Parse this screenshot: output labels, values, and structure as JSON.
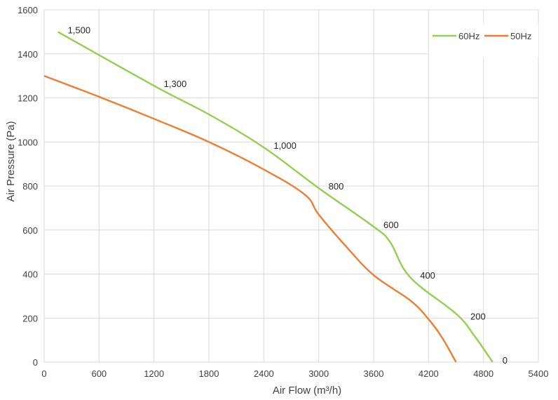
{
  "chart_data": {
    "type": "line",
    "xlabel": "Air Flow  (m³/h)",
    "ylabel": "Air Pressure  (Pa)",
    "xlim": [
      0,
      5400
    ],
    "ylim": [
      0,
      1600
    ],
    "x_ticks": [
      0,
      600,
      1200,
      1800,
      2400,
      3000,
      3600,
      4200,
      4800,
      5400
    ],
    "y_ticks": [
      0,
      200,
      400,
      600,
      800,
      1000,
      1200,
      1400,
      1600
    ],
    "x_tick_labels": [
      "0",
      "600",
      "1200",
      "1800",
      "2400",
      "3000",
      "3600",
      "4200",
      "4800",
      "5400"
    ],
    "y_tick_labels": [
      "0",
      "200",
      "400",
      "600",
      "800",
      "1000",
      "1200",
      "1400",
      "1600"
    ],
    "grid": true,
    "legend_position": "top-right",
    "series": [
      {
        "name": "60Hz",
        "color": "#92d050",
        "points": [
          [
            150,
            1500
          ],
          [
            1200,
            1255
          ],
          [
            1800,
            1125
          ],
          [
            2400,
            975
          ],
          [
            3000,
            790
          ],
          [
            3600,
            615
          ],
          [
            3780,
            545
          ],
          [
            4000,
            385
          ],
          [
            4500,
            220
          ],
          [
            4700,
            120
          ],
          [
            4900,
            0
          ]
        ],
        "point_labels": [
          {
            "x": 150,
            "y": 1500,
            "text": "1,500"
          },
          {
            "x": 1200,
            "y": 1255,
            "text": "1,300"
          },
          {
            "x": 2400,
            "y": 975,
            "text": "1,000"
          },
          {
            "x": 3000,
            "y": 790,
            "text": "800"
          },
          {
            "x": 3600,
            "y": 615,
            "text": "600"
          },
          {
            "x": 4000,
            "y": 385,
            "text": "400"
          },
          {
            "x": 4550,
            "y": 200,
            "text": "200"
          },
          {
            "x": 4900,
            "y": 0,
            "text": "0"
          }
        ]
      },
      {
        "name": "50Hz",
        "color": "#ed7d31",
        "points": [
          [
            0,
            1300
          ],
          [
            600,
            1205
          ],
          [
            1200,
            1105
          ],
          [
            1800,
            1000
          ],
          [
            2400,
            875
          ],
          [
            2850,
            760
          ],
          [
            3000,
            670
          ],
          [
            3300,
            525
          ],
          [
            3600,
            395
          ],
          [
            4000,
            280
          ],
          [
            4200,
            195
          ],
          [
            4350,
            110
          ],
          [
            4500,
            0
          ]
        ]
      }
    ]
  }
}
